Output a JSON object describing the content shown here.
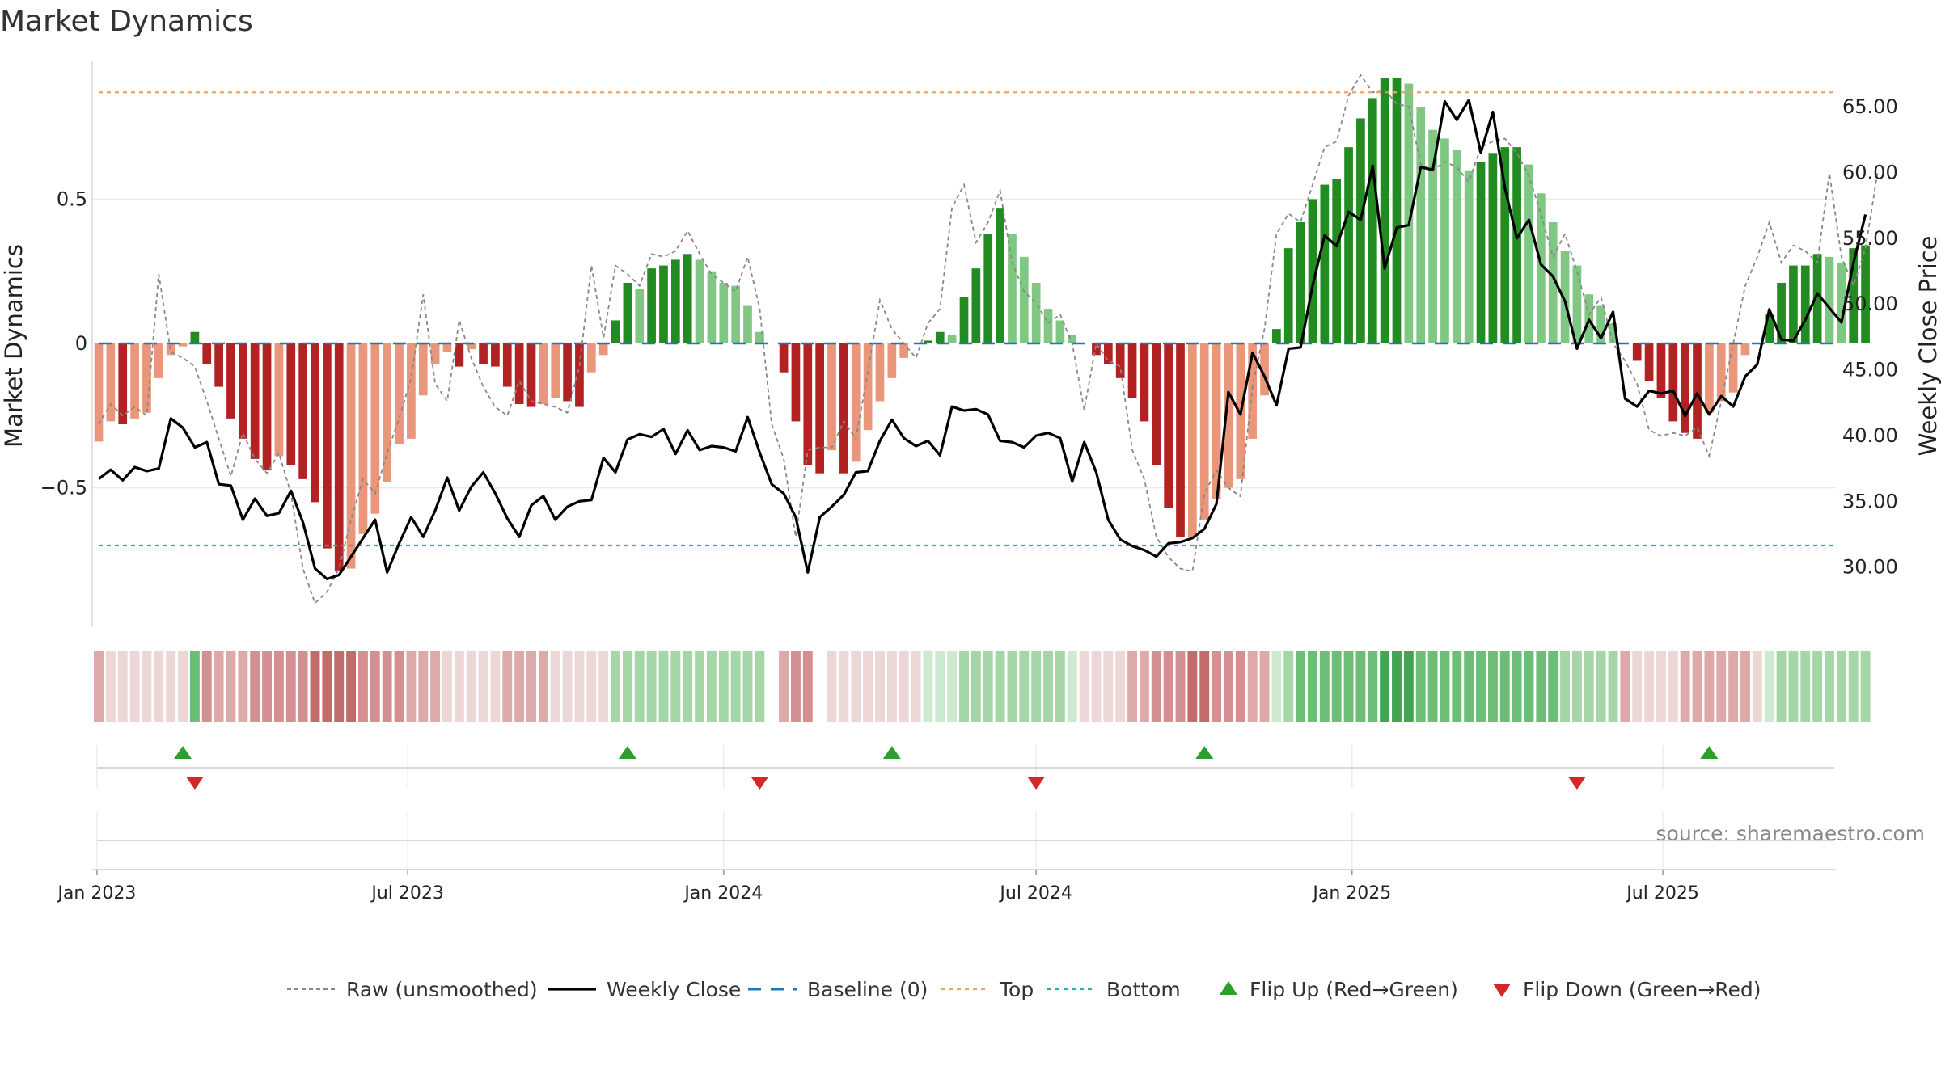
{
  "chart_data": {
    "type": "bar",
    "title": "Market Dynamics",
    "ylabel_left": "Market Dynamics",
    "ylabel_right": "Weekly Close Price",
    "x_start": "2023-01-02",
    "x_end": "2025-10-06",
    "x_step_days": 7,
    "x_tick_labels": [
      "Jan 2023",
      "Jul 2023",
      "Jan 2024",
      "Jul 2024",
      "Jan 2025",
      "Jul 2025"
    ],
    "x_tick_dates": [
      "2023-01-01",
      "2023-07-01",
      "2024-01-01",
      "2024-07-01",
      "2025-01-01",
      "2025-07-01"
    ],
    "ylim_left": [
      -0.98,
      0.98
    ],
    "yticks_left": [
      -0.5,
      0,
      0.5
    ],
    "ytick_labels_left": [
      "−0.5",
      "0",
      "0.5"
    ],
    "ylim_right": [
      25.5,
      68.5
    ],
    "yticks_right": [
      30,
      35,
      40,
      45,
      50,
      55,
      60,
      65
    ],
    "ytick_labels_right": [
      "30.00",
      "35.00",
      "40.00",
      "45.00",
      "50.00",
      "55.00",
      "60.00",
      "65.00"
    ],
    "top_level": 0.87,
    "bottom_level": -0.7,
    "baseline": 0,
    "grid": true,
    "legend_position": "bottom-center",
    "source_text": "source: sharemaestro.com",
    "colors": {
      "green_strong": "#228b22",
      "green_light": "#81c784",
      "red_strong": "#b22222",
      "red_light": "#e9967a",
      "raw_line": "#888888",
      "close_line": "#000000",
      "baseline": "#1f77b4",
      "top": "#f4a460",
      "bottom": "#20b2aa",
      "flip_up": "#2ca02c",
      "flip_down": "#d62728"
    },
    "dynamics": [
      -0.34,
      -0.27,
      -0.28,
      -0.26,
      -0.24,
      -0.12,
      -0.04,
      -0.01,
      0.04,
      -0.07,
      -0.15,
      -0.26,
      -0.33,
      -0.4,
      -0.44,
      -0.39,
      -0.42,
      -0.47,
      -0.55,
      -0.71,
      -0.79,
      -0.78,
      -0.66,
      -0.59,
      -0.48,
      -0.35,
      -0.33,
      -0.18,
      -0.07,
      -0.03,
      -0.08,
      -0.02,
      -0.07,
      -0.08,
      -0.15,
      -0.21,
      -0.22,
      -0.21,
      -0.19,
      -0.2,
      -0.22,
      -0.1,
      -0.04,
      0.08,
      0.21,
      0.19,
      0.26,
      0.27,
      0.29,
      0.31,
      0.29,
      0.25,
      0.21,
      0.2,
      0.13,
      0.04,
      0.0,
      -0.1,
      -0.27,
      -0.42,
      -0.45,
      -0.37,
      -0.45,
      -0.41,
      -0.3,
      -0.2,
      -0.12,
      -0.05,
      0.0,
      0.01,
      0.04,
      0.03,
      0.16,
      0.26,
      0.38,
      0.47,
      0.38,
      0.3,
      0.21,
      0.12,
      0.08,
      0.03,
      0.0,
      -0.04,
      -0.07,
      -0.12,
      -0.19,
      -0.27,
      -0.42,
      -0.57,
      -0.67,
      -0.67,
      -0.61,
      -0.54,
      -0.5,
      -0.47,
      -0.33,
      -0.18,
      0.05,
      0.33,
      0.42,
      0.5,
      0.55,
      0.57,
      0.68,
      0.78,
      0.85,
      0.92,
      0.92,
      0.9,
      0.82,
      0.74,
      0.71,
      0.67,
      0.6,
      0.63,
      0.66,
      0.68,
      0.68,
      0.62,
      0.52,
      0.42,
      0.32,
      0.27,
      0.17,
      0.13,
      0.07,
      0.0,
      -0.06,
      -0.13,
      -0.19,
      -0.27,
      -0.31,
      -0.33,
      -0.24,
      -0.2,
      -0.17,
      -0.04,
      0.0,
      0.1,
      0.21,
      0.27,
      0.27,
      0.31,
      0.3,
      0.28,
      0.33,
      0.34
    ],
    "raw": [
      -0.28,
      -0.21,
      -0.25,
      -0.22,
      -0.25,
      0.24,
      -0.03,
      -0.05,
      -0.08,
      -0.2,
      -0.33,
      -0.46,
      -0.31,
      -0.4,
      -0.45,
      -0.38,
      -0.52,
      -0.78,
      -0.9,
      -0.86,
      -0.78,
      -0.61,
      -0.47,
      -0.52,
      -0.38,
      -0.26,
      -0.12,
      0.17,
      -0.14,
      -0.2,
      0.08,
      -0.05,
      -0.15,
      -0.22,
      -0.25,
      -0.13,
      -0.2,
      -0.21,
      -0.22,
      -0.24,
      -0.08,
      0.27,
      0.02,
      0.27,
      0.24,
      0.2,
      0.31,
      0.3,
      0.32,
      0.39,
      0.31,
      0.24,
      0.21,
      0.18,
      0.3,
      0.12,
      -0.28,
      -0.4,
      -0.67,
      -0.37,
      -0.36,
      -0.36,
      -0.27,
      -0.33,
      -0.1,
      0.15,
      0.05,
      0.0,
      -0.05,
      0.07,
      0.12,
      0.47,
      0.55,
      0.35,
      0.42,
      0.53,
      0.28,
      0.18,
      0.14,
      0.07,
      0.1,
      0.0,
      -0.23,
      0.0,
      -0.06,
      -0.08,
      -0.37,
      -0.47,
      -0.67,
      -0.74,
      -0.78,
      -0.79,
      -0.52,
      -0.44,
      -0.5,
      -0.53,
      -0.15,
      0.05,
      0.38,
      0.45,
      0.42,
      0.55,
      0.68,
      0.7,
      0.86,
      0.93,
      0.87,
      0.88,
      0.83,
      0.82,
      0.62,
      0.6,
      0.63,
      0.61,
      0.56,
      0.68,
      0.7,
      0.71,
      0.66,
      0.58,
      0.45,
      0.3,
      0.38,
      0.25,
      0.1,
      0.16,
      0.0,
      -0.06,
      -0.14,
      -0.3,
      -0.32,
      -0.31,
      -0.32,
      -0.29,
      -0.39,
      -0.2,
      0.0,
      0.2,
      0.3,
      0.42,
      0.28,
      0.34,
      0.32,
      0.28,
      0.59,
      0.3,
      0.2,
      0.33,
      0.59
    ],
    "close": [
      36.7,
      37.4,
      36.6,
      37.6,
      37.3,
      37.5,
      41.3,
      40.6,
      39.1,
      39.5,
      36.3,
      36.2,
      33.6,
      35.2,
      33.9,
      34.1,
      35.8,
      33.4,
      29.9,
      29.1,
      29.4,
      30.8,
      32.2,
      33.6,
      29.6,
      31.8,
      33.8,
      32.3,
      34.3,
      36.8,
      34.3,
      36.1,
      37.2,
      35.6,
      33.7,
      32.3,
      34.7,
      35.4,
      33.6,
      34.6,
      35.0,
      35.1,
      38.3,
      37.2,
      39.7,
      40.1,
      39.9,
      40.5,
      38.6,
      40.4,
      38.9,
      39.2,
      39.1,
      38.8,
      41.4,
      38.7,
      36.3,
      35.6,
      33.8,
      29.6,
      33.8,
      34.6,
      35.5,
      37.2,
      37.3,
      39.6,
      41.2,
      39.8,
      39.2,
      39.6,
      38.5,
      42.2,
      41.9,
      42.0,
      41.6,
      39.6,
      39.5,
      39.1,
      40.0,
      40.2,
      39.8,
      36.5,
      39.5,
      37.2,
      33.6,
      32.1,
      31.6,
      31.3,
      30.8,
      31.8,
      31.9,
      32.2,
      32.9,
      34.8,
      43.3,
      41.6,
      46.3,
      44.5,
      42.3,
      46.6,
      46.7,
      51.4,
      55.2,
      54.4,
      57.0,
      56.4,
      60.5,
      52.7,
      55.8,
      56.0,
      60.4,
      60.2,
      65.4,
      64.0,
      65.5,
      61.5,
      64.6,
      58.8,
      55.0,
      56.4,
      53.0,
      52.1,
      50.2,
      46.6,
      48.8,
      47.4,
      49.4,
      42.8,
      42.2,
      43.4,
      43.2,
      43.4,
      41.5,
      43.2,
      41.6,
      43.0,
      42.2,
      44.5,
      45.4,
      49.6,
      47.3,
      47.2,
      48.8,
      50.8,
      49.7,
      48.6,
      53.1,
      56.8
    ],
    "color_band": [
      1,
      0,
      0,
      0,
      0,
      0,
      0,
      0,
      2,
      2,
      1,
      1,
      1,
      2,
      2,
      2,
      2,
      2,
      3,
      3,
      3,
      3,
      2,
      2,
      2,
      2,
      1,
      1,
      1,
      0,
      0,
      0,
      0,
      0,
      1,
      1,
      1,
      1,
      0,
      0,
      0,
      0,
      0,
      1,
      1,
      1,
      1,
      1,
      1,
      1,
      1,
      1,
      1,
      1,
      1,
      1,
      null,
      1,
      2,
      2,
      null,
      0,
      0,
      0,
      0,
      0,
      0,
      0,
      0,
      0,
      0,
      0,
      1,
      1,
      1,
      1,
      1,
      1,
      1,
      1,
      1,
      0,
      0,
      0,
      0,
      0,
      1,
      1,
      2,
      2,
      2,
      3,
      3,
      2,
      2,
      2,
      1,
      1,
      0,
      1,
      2,
      2,
      2,
      2,
      2,
      2,
      2,
      3,
      3,
      3,
      2,
      2,
      2,
      2,
      2,
      2,
      2,
      2,
      2,
      2,
      2,
      2,
      1,
      1,
      1,
      1,
      1,
      1,
      0,
      0,
      0,
      0,
      1,
      1,
      1,
      1,
      1,
      1,
      0,
      0,
      1,
      1,
      1,
      1,
      1,
      1,
      1,
      1,
      1,
      1,
      1
    ],
    "flip_up_dates": [
      "2023-02-20",
      "2023-11-06",
      "2024-04-08",
      "2024-10-07",
      "2025-07-28"
    ],
    "flip_down_dates": [
      "2023-02-27",
      "2024-01-22",
      "2024-07-01",
      "2025-05-12"
    ],
    "legend": [
      {
        "key": "raw",
        "label": "Raw (unsmoothed)"
      },
      {
        "key": "close",
        "label": "Weekly Close"
      },
      {
        "key": "baseline",
        "label": "Baseline (0)"
      },
      {
        "key": "top",
        "label": "Top"
      },
      {
        "key": "bottom",
        "label": "Bottom"
      },
      {
        "key": "flip_up",
        "label": "Flip Up (Red→Green)"
      },
      {
        "key": "flip_down",
        "label": "Flip Down (Green→Red)"
      }
    ]
  }
}
